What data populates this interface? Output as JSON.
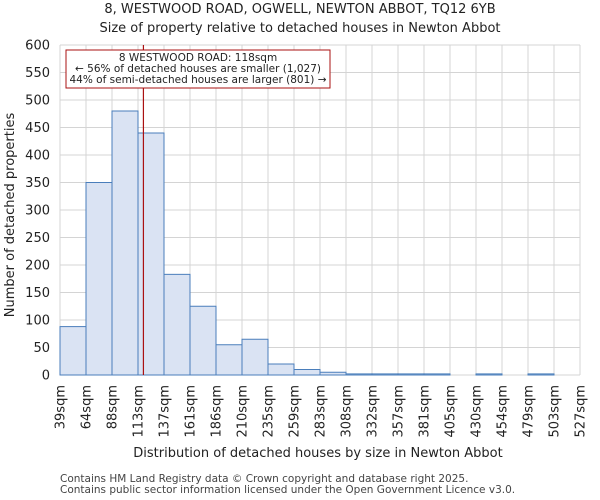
{
  "chart_data": {
    "type": "bar",
    "title": "8, WESTWOOD ROAD, OGWELL, NEWTON ABBOT, TQ12 6YB",
    "subtitle": "Size of property relative to detached houses in Newton Abbot",
    "xlabel": "Distribution of detached houses by size in Newton Abbot",
    "ylabel": "Number of detached properties",
    "categories": [
      "39sqm",
      "64sqm",
      "88sqm",
      "113sqm",
      "137sqm",
      "161sqm",
      "186sqm",
      "210sqm",
      "235sqm",
      "259sqm",
      "283sqm",
      "308sqm",
      "332sqm",
      "357sqm",
      "381sqm",
      "405sqm",
      "430sqm",
      "454sqm",
      "479sqm",
      "503sqm",
      "527sqm"
    ],
    "values": [
      88,
      350,
      480,
      440,
      183,
      125,
      55,
      65,
      20,
      10,
      5,
      2,
      2,
      2,
      2,
      0,
      2,
      0,
      2,
      0,
      0
    ],
    "ylim": [
      0,
      600
    ],
    "yticks": [
      0,
      50,
      100,
      150,
      200,
      250,
      300,
      350,
      400,
      450,
      500,
      550,
      600
    ],
    "grid": true,
    "bar_color": "#dae3f3",
    "bar_edge_color": "#4a7ebb",
    "marker": {
      "value_sqm": 118,
      "color": "#aa1111",
      "annotation": [
        "8 WESTWOOD ROAD: 118sqm",
        "← 56% of detached houses are smaller (1,027)",
        "44% of semi-detached houses are larger (801) →"
      ]
    }
  },
  "footer": {
    "line1": "Contains HM Land Registry data © Crown copyright and database right 2025.",
    "line2": "Contains public sector information licensed under the Open Government Licence v3.0."
  }
}
